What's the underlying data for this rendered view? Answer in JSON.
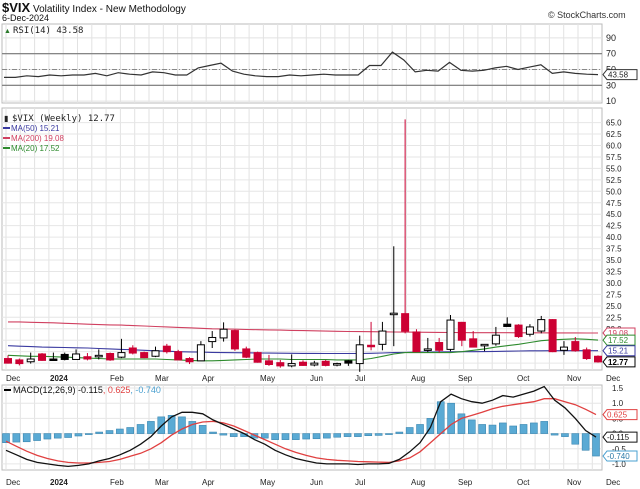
{
  "header": {
    "symbol": "$VIX",
    "name": "Volatility Index - New Methodology",
    "date": "6-Dec-2024",
    "credit": "© StockCharts.com"
  },
  "rsi_panel": {
    "label": "RSI(14) 43.58",
    "value": "43.58",
    "axis": [
      "90",
      "70",
      "50",
      "30",
      "10"
    ]
  },
  "price_panel": {
    "label": "$VIX (Weekly) 12.77",
    "legend": [
      {
        "name": "MA(50)",
        "value": "15.21",
        "color": "#3a3aa0"
      },
      {
        "name": "MA(200)",
        "value": "19.08",
        "color": "#d04060"
      },
      {
        "name": "MA(20)",
        "value": "17.52",
        "color": "#2e8b2e"
      }
    ],
    "axis": [
      "65.0",
      "62.5",
      "60.0",
      "57.5",
      "55.0",
      "52.5",
      "50.0",
      "47.5",
      "45.0",
      "42.5",
      "40.0",
      "37.5",
      "35.0",
      "32.5",
      "30.0",
      "27.5",
      "25.0",
      "22.5",
      "20.0"
    ],
    "tags": [
      {
        "value": "19.08",
        "color": "#d04060"
      },
      {
        "value": "17.52",
        "color": "#2e8b2e"
      },
      {
        "value": "15.21",
        "color": "#3a3aa0"
      },
      {
        "value": "12.77",
        "color": "#000000"
      }
    ]
  },
  "macd_panel": {
    "label_prefix": "MACD(12,26,9)",
    "macd": "-0.115",
    "signal": "0.625",
    "hist": "-0.740",
    "axis": [
      "1.5",
      "1.0",
      "0.5",
      "0.0",
      "-0.5",
      "-1.0"
    ],
    "colors": {
      "macd": "#000000",
      "signal": "#e04040",
      "hist": "#4aa0d0"
    }
  },
  "x_axis": [
    "Dec",
    "2024",
    "Feb",
    "Mar",
    "Apr",
    "May",
    "Jun",
    "Jul",
    "Aug",
    "Sep",
    "Oct",
    "Nov",
    "Dec"
  ],
  "chart_data": [
    {
      "type": "line",
      "title": "RSI(14)",
      "ylim": [
        0,
        100
      ],
      "reference_lines": [
        70,
        50,
        30
      ],
      "values": [
        40,
        40,
        42,
        41,
        43,
        42,
        43,
        43,
        45,
        42,
        46,
        44,
        43,
        47,
        46,
        43,
        43,
        52,
        55,
        58,
        48,
        44,
        42,
        41,
        41,
        43,
        42,
        43,
        44,
        43,
        43,
        43,
        55,
        55,
        72,
        62,
        47,
        49,
        48,
        59,
        49,
        48,
        49,
        52,
        54,
        50,
        53,
        56,
        45,
        47,
        45,
        44,
        43.58
      ]
    },
    {
      "type": "candlestick",
      "title": "$VIX (Weekly)",
      "ylim": [
        11,
        66
      ],
      "ohlc": [
        [
          13.5,
          14.2,
          12.4,
          12.5
        ],
        [
          13.2,
          13.5,
          12.0,
          12.4
        ],
        [
          12.8,
          14.8,
          12.4,
          13.4
        ],
        [
          14.5,
          14.7,
          13.0,
          13.1
        ],
        [
          13.4,
          14.8,
          13.2,
          13.3
        ],
        [
          14.4,
          14.8,
          13.1,
          13.3
        ],
        [
          13.3,
          15.5,
          13.3,
          14.5
        ],
        [
          13.9,
          14.7,
          13.1,
          13.4
        ],
        [
          14.1,
          15.5,
          13.3,
          14.2
        ],
        [
          14.6,
          14.8,
          13.0,
          13.2
        ],
        [
          13.8,
          17.8,
          13.6,
          14.8
        ],
        [
          15.8,
          16.4,
          14.4,
          14.7
        ],
        [
          14.8,
          15.0,
          13.6,
          13.7
        ],
        [
          14.0,
          16.1,
          13.8,
          15.2
        ],
        [
          16.2,
          16.7,
          14.6,
          15.0
        ],
        [
          15.0,
          15.4,
          13.2,
          13.2
        ],
        [
          13.5,
          13.8,
          12.3,
          12.8
        ],
        [
          13.0,
          17.3,
          13.0,
          16.5
        ],
        [
          17.2,
          19.5,
          15.8,
          18.1
        ],
        [
          18.0,
          21.4,
          17.2,
          19.9
        ],
        [
          19.6,
          19.8,
          15.2,
          15.6
        ],
        [
          15.6,
          16.1,
          13.6,
          13.8
        ],
        [
          14.8,
          15.0,
          12.6,
          12.7
        ],
        [
          13.0,
          14.3,
          11.9,
          12.2
        ],
        [
          12.6,
          13.2,
          11.5,
          11.9
        ],
        [
          11.9,
          14.4,
          11.6,
          12.4
        ],
        [
          12.7,
          13.1,
          11.9,
          12.0
        ],
        [
          12.1,
          13.0,
          11.8,
          12.5
        ],
        [
          12.9,
          13.2,
          11.8,
          12.0
        ],
        [
          12.2,
          12.6,
          11.8,
          12.4
        ],
        [
          13.0,
          13.2,
          11.9,
          12.5
        ],
        [
          12.4,
          18.5,
          10.6,
          16.5
        ],
        [
          16.4,
          21.5,
          15.3,
          16.3
        ],
        [
          16.6,
          21.5,
          15.3,
          19.5
        ],
        [
          23.4,
          38.0,
          16.2,
          23.4
        ],
        [
          23.3,
          65.7,
          19.0,
          19.5
        ],
        [
          19.3,
          19.9,
          14.9,
          15.0
        ],
        [
          15.6,
          18.0,
          14.9,
          15.6
        ],
        [
          17.0,
          18.0,
          14.8,
          15.3
        ],
        [
          15.5,
          23.0,
          15.1,
          21.9
        ],
        [
          21.4,
          21.5,
          16.2,
          17.5
        ],
        [
          17.8,
          19.5,
          16.4,
          16.0
        ],
        [
          16.3,
          16.6,
          15.1,
          16.6
        ],
        [
          16.7,
          20.4,
          16.3,
          18.6
        ],
        [
          21.0,
          22.5,
          20.7,
          20.5
        ],
        [
          20.8,
          21.0,
          18.0,
          18.3
        ],
        [
          18.8,
          21.0,
          18.3,
          20.4
        ],
        [
          19.5,
          22.8,
          19.0,
          22.0
        ],
        [
          22.0,
          22.1,
          14.9,
          15.0
        ],
        [
          15.3,
          17.3,
          14.3,
          16.0
        ],
        [
          17.2,
          18.2,
          15.0,
          15.2
        ],
        [
          15.4,
          15.9,
          13.2,
          13.5
        ],
        [
          14.0,
          14.2,
          12.6,
          12.77
        ]
      ],
      "ma50": [
        16.3,
        16.2,
        16.1,
        16.0,
        15.95,
        15.9,
        15.85,
        15.8,
        15.7,
        15.6,
        15.5,
        15.4,
        15.3,
        15.2,
        15.1,
        15.0,
        14.95,
        14.9,
        14.85,
        14.8,
        14.78,
        14.75,
        14.7,
        14.68,
        14.66,
        14.65,
        14.63,
        14.62,
        14.6,
        14.6,
        14.6,
        14.6,
        14.65,
        14.7,
        14.8,
        14.85,
        14.9,
        14.92,
        14.95,
        14.97,
        15.0,
        15.0,
        15.02,
        15.05,
        15.1,
        15.15,
        15.2,
        15.2,
        15.22,
        15.22,
        15.21,
        15.21,
        15.21
      ],
      "ma200": [
        21.5,
        21.5,
        21.4,
        21.35,
        21.3,
        21.2,
        21.1,
        21.0,
        20.9,
        20.85,
        20.8,
        20.7,
        20.6,
        20.5,
        20.4,
        20.3,
        20.2,
        20.1,
        20.0,
        19.95,
        19.9,
        19.85,
        19.8,
        19.75,
        19.7,
        19.65,
        19.6,
        19.55,
        19.5,
        19.45,
        19.4,
        19.38,
        19.35,
        19.33,
        19.3,
        19.28,
        19.25,
        19.22,
        19.2,
        19.18,
        19.17,
        19.15,
        19.15,
        19.14,
        19.13,
        19.12,
        19.12,
        19.11,
        19.1,
        19.1,
        19.09,
        19.08,
        19.08
      ],
      "ma20": [
        14.2,
        14.1,
        14.0,
        14.0,
        13.9,
        13.8,
        13.7,
        13.6,
        13.5,
        13.4,
        13.4,
        13.4,
        13.4,
        13.4,
        13.3,
        13.2,
        13.1,
        13.0,
        13.0,
        13.1,
        13.2,
        13.3,
        13.4,
        13.4,
        13.4,
        13.3,
        13.3,
        13.3,
        13.3,
        13.2,
        13.2,
        13.2,
        13.5,
        14.0,
        14.5,
        14.8,
        14.8,
        14.8,
        14.8,
        14.8,
        15.0,
        15.3,
        15.6,
        16.0,
        16.3,
        16.6,
        17.0,
        17.4,
        17.6,
        17.7,
        17.8,
        17.7,
        17.52
      ],
      "series": [
        {
          "name": "MA(50)",
          "last": 15.21
        },
        {
          "name": "MA(200)",
          "last": 19.08
        },
        {
          "name": "MA(20)",
          "last": 17.52
        }
      ]
    },
    {
      "type": "line+bar",
      "title": "MACD(12,26,9)",
      "ylim": [
        -1.2,
        1.6
      ],
      "macd": [
        -0.55,
        -0.7,
        -0.85,
        -0.95,
        -1.0,
        -1.05,
        -1.08,
        -1.05,
        -1.0,
        -0.9,
        -0.82,
        -0.7,
        -0.55,
        -0.35,
        -0.1,
        0.25,
        0.55,
        0.7,
        0.7,
        0.65,
        0.45,
        0.3,
        0.15,
        0.0,
        -0.2,
        -0.35,
        -0.55,
        -0.7,
        -0.82,
        -0.9,
        -0.97,
        -1.0,
        -1.0,
        -1.0,
        -1.02,
        -1.0,
        -1.0,
        -0.98,
        -0.85,
        -0.6,
        -0.3,
        0.2,
        1.05,
        1.3,
        1.15,
        1.05,
        1.0,
        1.1,
        1.25,
        1.2,
        1.3,
        1.4,
        1.55,
        1.1,
        0.85,
        0.5,
        0.1,
        -0.115
      ],
      "signal": [
        -0.25,
        -0.42,
        -0.58,
        -0.72,
        -0.82,
        -0.9,
        -0.95,
        -0.97,
        -0.97,
        -0.95,
        -0.92,
        -0.85,
        -0.75,
        -0.65,
        -0.5,
        -0.3,
        -0.05,
        0.15,
        0.3,
        0.38,
        0.4,
        0.35,
        0.25,
        0.1,
        -0.05,
        -0.2,
        -0.35,
        -0.5,
        -0.62,
        -0.72,
        -0.8,
        -0.85,
        -0.88,
        -0.9,
        -0.92,
        -0.93,
        -0.94,
        -0.95,
        -0.9,
        -0.8,
        -0.6,
        -0.3,
        0.0,
        0.3,
        0.5,
        0.6,
        0.7,
        0.82,
        0.9,
        0.95,
        1.0,
        1.05,
        1.15,
        1.15,
        1.05,
        0.95,
        0.8,
        0.625
      ],
      "histogram": [
        -0.3,
        -0.28,
        -0.27,
        -0.23,
        -0.18,
        -0.15,
        -0.13,
        -0.08,
        -0.03,
        0.05,
        0.1,
        0.15,
        0.2,
        0.3,
        0.4,
        0.55,
        0.6,
        0.55,
        0.4,
        0.27,
        0.05,
        -0.05,
        -0.1,
        -0.1,
        -0.15,
        -0.15,
        -0.2,
        -0.2,
        -0.2,
        -0.18,
        -0.17,
        -0.15,
        -0.12,
        -0.1,
        -0.1,
        -0.07,
        -0.06,
        -0.03,
        0.05,
        0.2,
        0.3,
        0.5,
        1.05,
        1.0,
        0.65,
        0.45,
        0.3,
        0.28,
        0.35,
        0.25,
        0.3,
        0.35,
        0.4,
        -0.05,
        -0.1,
        -0.35,
        -0.55,
        -0.74
      ]
    }
  ]
}
